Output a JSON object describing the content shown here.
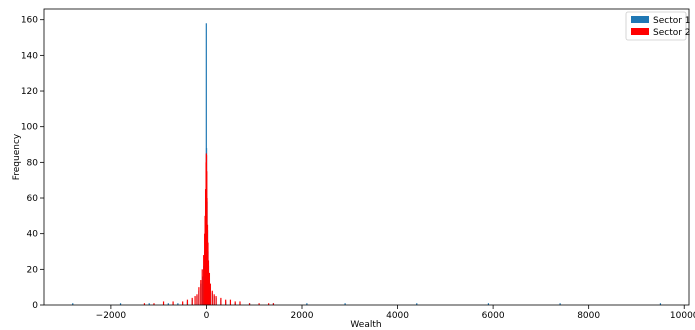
{
  "chart_data": {
    "type": "histogram",
    "title": "",
    "xlabel": "Wealth",
    "ylabel": "Frequency",
    "xlim": [
      -3400,
      10100
    ],
    "ylim": [
      0,
      166
    ],
    "xticks": [
      -2000,
      0,
      2000,
      4000,
      6000,
      8000,
      10000
    ],
    "xtick_labels": [
      "−2000",
      "0",
      "2000",
      "4000",
      "6000",
      "8000",
      "10000"
    ],
    "yticks": [
      0,
      20,
      40,
      60,
      80,
      100,
      120,
      140,
      160
    ],
    "ytick_labels": [
      "0",
      "20",
      "40",
      "60",
      "80",
      "100",
      "120",
      "140",
      "160"
    ],
    "grid": false,
    "legend_position": "top-right",
    "series": [
      {
        "name": "Sector 1",
        "color": "#1f77b4",
        "bins": [
          [
            -2800,
            1
          ],
          [
            -1800,
            1
          ],
          [
            -1200,
            1
          ],
          [
            -800,
            1
          ],
          [
            -600,
            1
          ],
          [
            -400,
            2
          ],
          [
            -300,
            3
          ],
          [
            -200,
            5
          ],
          [
            -160,
            8
          ],
          [
            -120,
            12
          ],
          [
            -80,
            16
          ],
          [
            -60,
            22
          ],
          [
            -40,
            30
          ],
          [
            -30,
            36
          ],
          [
            -20,
            45
          ],
          [
            -10,
            60
          ],
          [
            -5,
            158
          ],
          [
            0,
            88
          ],
          [
            10,
            58
          ],
          [
            20,
            42
          ],
          [
            30,
            30
          ],
          [
            40,
            22
          ],
          [
            60,
            15
          ],
          [
            80,
            10
          ],
          [
            120,
            7
          ],
          [
            160,
            5
          ],
          [
            200,
            4
          ],
          [
            300,
            3
          ],
          [
            400,
            2
          ],
          [
            600,
            1
          ],
          [
            900,
            1
          ],
          [
            1400,
            1
          ],
          [
            2100,
            1
          ],
          [
            2900,
            1
          ],
          [
            4400,
            1
          ],
          [
            5900,
            1
          ],
          [
            7400,
            1
          ],
          [
            9500,
            1
          ]
        ]
      },
      {
        "name": "Sector 2",
        "color": "#ff0000",
        "bins": [
          [
            -1300,
            1
          ],
          [
            -1100,
            1
          ],
          [
            -900,
            2
          ],
          [
            -700,
            2
          ],
          [
            -500,
            2
          ],
          [
            -400,
            3
          ],
          [
            -300,
            4
          ],
          [
            -240,
            5
          ],
          [
            -200,
            6
          ],
          [
            -160,
            10
          ],
          [
            -120,
            14
          ],
          [
            -90,
            20
          ],
          [
            -60,
            28
          ],
          [
            -40,
            40
          ],
          [
            -30,
            50
          ],
          [
            -20,
            65
          ],
          [
            -10,
            80
          ],
          [
            -5,
            85
          ],
          [
            0,
            84
          ],
          [
            5,
            75
          ],
          [
            10,
            60
          ],
          [
            20,
            45
          ],
          [
            30,
            35
          ],
          [
            40,
            25
          ],
          [
            60,
            18
          ],
          [
            80,
            12
          ],
          [
            120,
            8
          ],
          [
            160,
            6
          ],
          [
            200,
            5
          ],
          [
            300,
            4
          ],
          [
            400,
            3
          ],
          [
            500,
            3
          ],
          [
            600,
            2
          ],
          [
            700,
            2
          ],
          [
            900,
            1
          ],
          [
            1100,
            1
          ],
          [
            1300,
            1
          ],
          [
            1400,
            1
          ]
        ]
      }
    ]
  }
}
